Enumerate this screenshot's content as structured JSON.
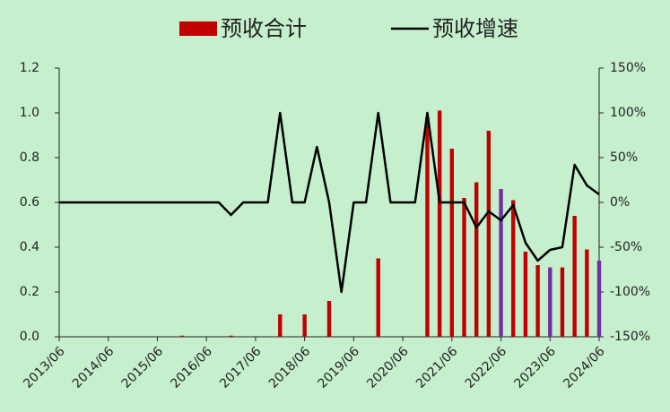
{
  "chart_data": {
    "type": "bar_line",
    "categories": [
      "2013/06",
      null,
      null,
      null,
      "2014/06",
      null,
      null,
      null,
      "2015/06",
      null,
      null,
      null,
      "2016/06",
      null,
      null,
      null,
      "2017/06",
      null,
      null,
      null,
      "2018/06",
      null,
      null,
      null,
      "2019/06",
      null,
      null,
      null,
      "2020/06",
      null,
      null,
      null,
      "2021/06",
      null,
      null,
      null,
      "2022/06",
      null,
      null,
      null,
      "2023/06",
      null,
      null,
      null,
      "2024/06"
    ],
    "series": [
      {
        "name": "预收合计",
        "type": "bar",
        "color": "#c00000",
        "colors": [
          "#c00000",
          "#c00000",
          "#c00000",
          "#c00000",
          "#c00000",
          "#c00000",
          "#c00000",
          "#c00000",
          "#c00000",
          "#c00000",
          "#c00000",
          "#c00000",
          "#c00000",
          "#c00000",
          "#c00000",
          "#c00000",
          "#c00000",
          "#c00000",
          "#c00000",
          "#c00000",
          "#c00000",
          "#c00000",
          "#c00000",
          "#c00000",
          "#c00000",
          "#c00000",
          "#c00000",
          "#c00000",
          "#c00000",
          "#c00000",
          "#c00000",
          "#c00000",
          "#c00000",
          "#c00000",
          "#c00000",
          "#c00000",
          "#7030a0",
          "#c00000",
          "#c00000",
          "#c00000",
          "#7030a0",
          "#c00000",
          "#c00000",
          "#c00000",
          "#7030a0"
        ],
        "values": [
          0,
          0,
          0,
          0,
          0,
          0,
          0,
          0,
          0,
          0,
          0.005,
          0,
          0,
          0,
          0.005,
          0,
          0,
          0,
          0.1,
          0,
          0.1,
          0,
          0.16,
          0,
          0,
          0,
          0.35,
          0,
          0,
          0,
          0.98,
          1.01,
          0.84,
          0.62,
          0.69,
          0.92,
          0.66,
          0.61,
          0.38,
          0.32,
          0.31,
          0.31,
          0.54,
          0.39,
          0.34
        ]
      },
      {
        "name": "预收增速",
        "type": "line",
        "axis": "y2",
        "color": "#000000",
        "values": [
          0,
          0,
          0,
          0,
          0,
          0,
          0,
          0,
          0,
          0,
          0,
          0,
          0,
          0,
          -14,
          0,
          0,
          0,
          100,
          0,
          0,
          62,
          0,
          -100,
          0,
          0,
          100,
          0,
          0,
          0,
          100,
          0,
          0,
          0,
          -28,
          -10,
          -20,
          -3,
          -45,
          -65,
          -53,
          -50,
          42,
          19,
          9
        ]
      }
    ],
    "ylim": [
      0,
      1.2
    ],
    "yticks": [
      {
        "value": 0,
        "label": "0.0"
      },
      {
        "value": 0.2,
        "label": "0.2"
      },
      {
        "value": 0.4,
        "label": "0.4"
      },
      {
        "value": 0.6,
        "label": "0.6"
      },
      {
        "value": 0.8,
        "label": "0.8"
      },
      {
        "value": 1.0,
        "label": "1.0"
      },
      {
        "value": 1.2,
        "label": "1.2"
      }
    ],
    "y2lim": [
      -150,
      150
    ],
    "y2ticks": [
      {
        "value": -150,
        "label": "-150%"
      },
      {
        "value": -100,
        "label": "-100%"
      },
      {
        "value": -50,
        "label": "-50%"
      },
      {
        "value": 0,
        "label": "0%"
      },
      {
        "value": 50,
        "label": "50%"
      },
      {
        "value": 100,
        "label": "100%"
      },
      {
        "value": 150,
        "label": "150%"
      }
    ],
    "legend": "top"
  }
}
